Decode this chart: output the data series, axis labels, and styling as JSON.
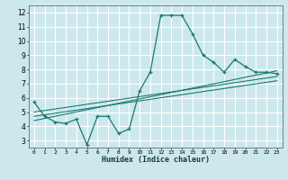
{
  "title": "",
  "xlabel": "Humidex (Indice chaleur)",
  "bg_color": "#cce8ec",
  "grid_color": "#ffffff",
  "line_color": "#1a7a6e",
  "xlim": [
    -0.5,
    23.5
  ],
  "ylim": [
    2.5,
    12.5
  ],
  "xticks": [
    0,
    1,
    2,
    3,
    4,
    5,
    6,
    7,
    8,
    9,
    10,
    11,
    12,
    13,
    14,
    15,
    16,
    17,
    18,
    19,
    20,
    21,
    22,
    23
  ],
  "yticks": [
    3,
    4,
    5,
    6,
    7,
    8,
    9,
    10,
    11,
    12
  ],
  "main_line_x": [
    0,
    1,
    2,
    3,
    4,
    5,
    6,
    7,
    8,
    9,
    10,
    11,
    12,
    13,
    14,
    15,
    16,
    17,
    18,
    19,
    20,
    21,
    22,
    23
  ],
  "main_line_y": [
    5.7,
    4.7,
    4.3,
    4.2,
    4.5,
    2.7,
    4.7,
    4.7,
    3.5,
    3.8,
    6.5,
    7.8,
    11.8,
    11.8,
    11.8,
    10.5,
    9.0,
    8.5,
    7.8,
    8.7,
    8.2,
    7.8,
    7.8,
    7.7
  ],
  "trend1_x": [
    0,
    23
  ],
  "trend1_y": [
    5.0,
    7.5
  ],
  "trend2_x": [
    0,
    23
  ],
  "trend2_y": [
    4.7,
    7.2
  ],
  "trend3_x": [
    0,
    23
  ],
  "trend3_y": [
    4.4,
    7.9
  ]
}
